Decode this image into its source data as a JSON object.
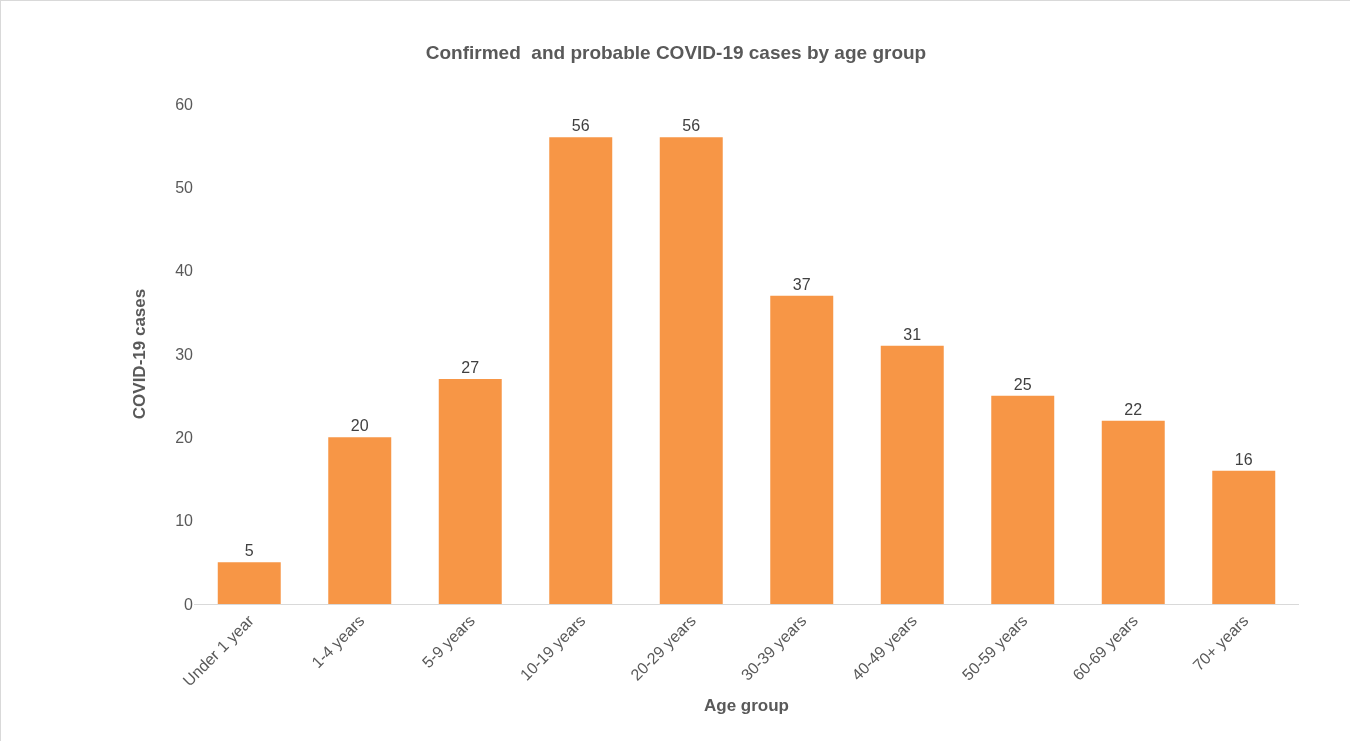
{
  "chart_data": {
    "type": "bar",
    "title": "Confirmed  and probable COVID-19 cases by age group",
    "xlabel": "Age group",
    "ylabel": "COVID-19 cases",
    "categories": [
      "Under 1 year",
      "1-4 years",
      "5-9 years",
      "10-19 years",
      "20-29 years",
      "30-39 years",
      "40-49 years",
      "50-59 years",
      "60-69 years",
      "70+ years"
    ],
    "values": [
      5,
      20,
      27,
      56,
      56,
      37,
      31,
      25,
      22,
      16
    ],
    "color": "#f79646",
    "ylim": [
      0,
      60
    ],
    "yticks": [
      0,
      10,
      20,
      30,
      40,
      50,
      60
    ],
    "grid": false,
    "data_labels": true,
    "legend": false
  }
}
